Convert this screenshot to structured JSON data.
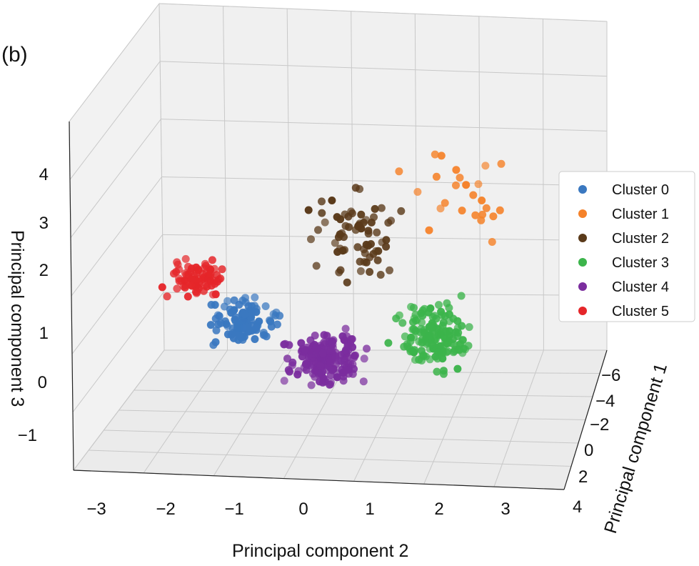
{
  "chart_data": {
    "type": "scatter",
    "dimensions": "3d",
    "panel_label": "(b)",
    "xlabel": "Principal component 2",
    "ylabel": "Principal component 1",
    "zlabel": "Principal component 3",
    "x_ticks": [
      "−3",
      "−2",
      "−1",
      "0",
      "1",
      "2",
      "3"
    ],
    "y_ticks": [
      "−6",
      "−4",
      "−2",
      "0",
      "2",
      "4"
    ],
    "z_ticks": [
      "−1",
      "0",
      "1",
      "2",
      "3",
      "4"
    ],
    "legend_position": "right",
    "series": [
      {
        "name": "Cluster 0",
        "color": "#3a78c0",
        "approx_center": {
          "pc2": -1.0,
          "pc1": 0.5,
          "pc3": 0.7
        },
        "points_approx": 110
      },
      {
        "name": "Cluster 1",
        "color": "#f5822a",
        "approx_center": {
          "pc2": 1.5,
          "pc1": -5.0,
          "pc3": 3.0
        },
        "points_approx": 25
      },
      {
        "name": "Cluster 2",
        "color": "#5a3a1a",
        "approx_center": {
          "pc2": 0.8,
          "pc1": -3.0,
          "pc3": 2.5
        },
        "points_approx": 70
      },
      {
        "name": "Cluster 3",
        "color": "#3cb44b",
        "approx_center": {
          "pc2": 2.0,
          "pc1": -3.0,
          "pc3": 0.3
        },
        "points_approx": 160
      },
      {
        "name": "Cluster 4",
        "color": "#7b2d9e",
        "approx_center": {
          "pc2": 0.0,
          "pc1": 0.5,
          "pc3": 0.0
        },
        "points_approx": 190
      },
      {
        "name": "Cluster 5",
        "color": "#e5262a",
        "approx_center": {
          "pc2": -2.0,
          "pc1": 0.5,
          "pc3": 1.8
        },
        "points_approx": 80
      }
    ]
  }
}
